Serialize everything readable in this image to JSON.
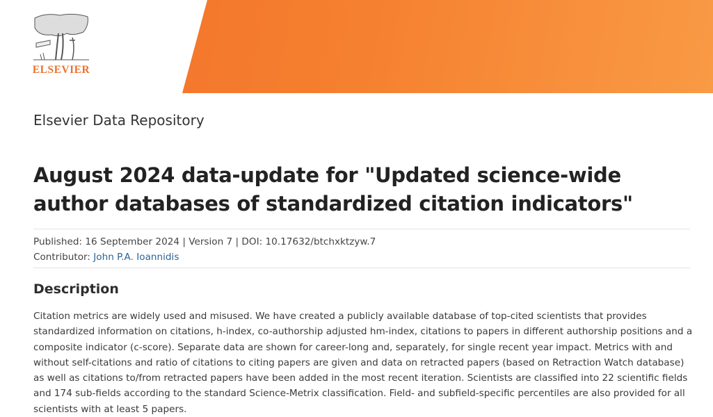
{
  "header": {
    "logo_text": "ELSEVIER",
    "banner_color": "#f47a30",
    "brand_color": "#e9722e"
  },
  "repository_name": "Elsevier Data Repository",
  "dataset": {
    "title": "August 2024 data-update for \"Updated science-wide author databases of standardized citation indicators\"",
    "published_line": "Published: 16 September 2024 | Version 7 | DOI: 10.17632/btchxktzyw.7",
    "contributor_label": "Contributor:",
    "contributor_name": "John P.A. Ioannidis"
  },
  "description": {
    "heading": "Description",
    "text": "Citation metrics are widely used and misused. We have created a publicly available database of top-cited scientists that provides standardized information on citations, h-index, co-authorship adjusted hm-index, citations to papers in different authorship positions and a composite indicator (c-score). Separate data are shown for career-long and, separately, for single recent year impact. Metrics with and without self-citations and ratio of citations to citing papers are given and data on retracted papers (based on Retraction Watch database) as well as citations to/from retracted papers have been added in the most recent iteration. Scientists are classified into 22 scientific fields and 174 sub-fields according to the standard Science-Metrix classification. Field- and subfield-specific percentiles are also provided for all scientists with at least 5 papers."
  }
}
